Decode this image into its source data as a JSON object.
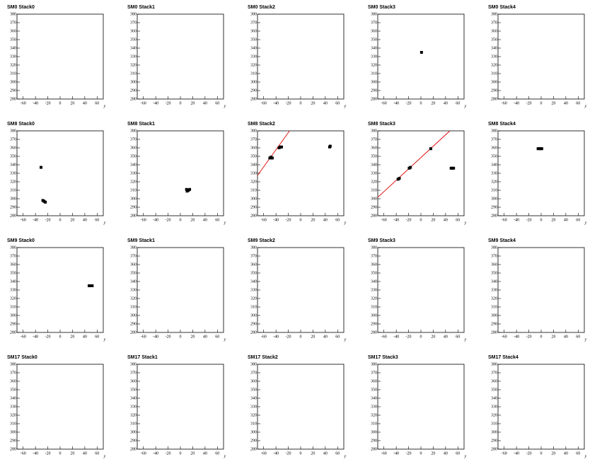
{
  "chart_data": [
    {
      "type": "scatter",
      "title": "SM0 Stack0",
      "x_label": "y",
      "xlim": [
        -70,
        70
      ],
      "ylim": [
        280,
        380
      ],
      "xticks": [
        -60,
        -40,
        -20,
        0,
        20,
        40,
        60
      ],
      "yticks": [
        280,
        290,
        300,
        310,
        320,
        330,
        340,
        350,
        360,
        370,
        380
      ],
      "series": [
        {
          "color": "#000000",
          "x": [],
          "values": []
        }
      ]
    },
    {
      "type": "scatter",
      "title": "SM0 Stack1",
      "x_label": "y",
      "xlim": [
        -70,
        70
      ],
      "ylim": [
        280,
        380
      ],
      "xticks": [
        -60,
        -40,
        -20,
        0,
        20,
        40,
        60
      ],
      "yticks": [
        280,
        290,
        300,
        310,
        320,
        330,
        340,
        350,
        360,
        370,
        380
      ],
      "series": [
        {
          "color": "#000000",
          "x": [],
          "values": []
        }
      ]
    },
    {
      "type": "scatter",
      "title": "SM0 Stack2",
      "x_label": "y",
      "xlim": [
        -70,
        70
      ],
      "ylim": [
        280,
        380
      ],
      "xticks": [
        -60,
        -40,
        -20,
        0,
        20,
        40,
        60
      ],
      "yticks": [
        280,
        290,
        300,
        310,
        320,
        330,
        340,
        350,
        360,
        370,
        380
      ],
      "series": [
        {
          "color": "#000000",
          "x": [],
          "values": []
        }
      ]
    },
    {
      "type": "scatter",
      "title": "SM0 Stack3",
      "x_label": "y",
      "xlim": [
        -70,
        70
      ],
      "ylim": [
        280,
        380
      ],
      "xticks": [
        -60,
        -40,
        -20,
        0,
        20,
        40,
        60
      ],
      "yticks": [
        280,
        290,
        300,
        310,
        320,
        330,
        340,
        350,
        360,
        370,
        380
      ],
      "series": [
        {
          "color": "#000000",
          "x": [
            1
          ],
          "values": [
            335
          ]
        }
      ]
    },
    {
      "type": "scatter",
      "title": "SM0 Stack4",
      "x_label": "y",
      "xlim": [
        -70,
        70
      ],
      "ylim": [
        280,
        380
      ],
      "xticks": [
        -60,
        -40,
        -20,
        0,
        20,
        40,
        60
      ],
      "yticks": [
        280,
        290,
        300,
        310,
        320,
        330,
        340,
        350,
        360,
        370,
        380
      ],
      "series": [
        {
          "color": "#000000",
          "x": [],
          "values": []
        }
      ]
    },
    {
      "type": "scatter",
      "title": "SM8 Stack0",
      "x_label": "y",
      "xlim": [
        -70,
        70
      ],
      "ylim": [
        280,
        380
      ],
      "xticks": [
        -60,
        -40,
        -20,
        0,
        20,
        40,
        60
      ],
      "yticks": [
        280,
        290,
        300,
        310,
        320,
        330,
        340,
        350,
        360,
        370,
        380
      ],
      "series": [
        {
          "color": "#000000",
          "x": [
            -31,
            -28,
            -26,
            -24
          ],
          "values": [
            337,
            298,
            297,
            296
          ]
        }
      ]
    },
    {
      "type": "scatter",
      "title": "SM8 Stack1",
      "x_label": "y",
      "xlim": [
        -70,
        70
      ],
      "ylim": [
        280,
        380
      ],
      "xticks": [
        -60,
        -40,
        -20,
        0,
        20,
        40,
        60
      ],
      "yticks": [
        280,
        290,
        300,
        310,
        320,
        330,
        340,
        350,
        360,
        370,
        380
      ],
      "series": [
        {
          "color": "#000000",
          "x": [
            10,
            11,
            13,
            15
          ],
          "values": [
            311,
            309,
            310,
            311
          ]
        }
      ]
    },
    {
      "type": "scatter",
      "title": "SM8 Stack2",
      "x_label": "y",
      "xlim": [
        -70,
        70
      ],
      "ylim": [
        280,
        380
      ],
      "xticks": [
        -60,
        -40,
        -20,
        0,
        20,
        40,
        60
      ],
      "yticks": [
        280,
        290,
        300,
        310,
        320,
        330,
        340,
        350,
        360,
        370,
        380
      ],
      "series": [
        {
          "color": "#000000",
          "x": [
            -50,
            -48,
            -46,
            -35,
            -33,
            -31,
            47,
            48
          ],
          "values": [
            348,
            349,
            348,
            360,
            361,
            361,
            361,
            362
          ]
        }
      ],
      "fit": {
        "color": "#dd0000",
        "x": [
          -70,
          -18
        ],
        "values": [
          327.5,
          380
        ]
      }
    },
    {
      "type": "scatter",
      "title": "SM8 Stack3",
      "x_label": "y",
      "xlim": [
        -70,
        70
      ],
      "ylim": [
        280,
        380
      ],
      "xticks": [
        -60,
        -40,
        -20,
        0,
        20,
        40,
        60
      ],
      "yticks": [
        280,
        290,
        300,
        310,
        320,
        330,
        340,
        350,
        360,
        370,
        380
      ],
      "series": [
        {
          "color": "#000000",
          "x": [
            -37,
            -35,
            -19,
            -17,
            16,
            49,
            51,
            53
          ],
          "values": [
            323,
            324,
            336,
            337,
            359,
            336,
            336,
            336
          ]
        }
      ],
      "fit": {
        "color": "#dd0000",
        "x": [
          -70,
          47
        ],
        "values": [
          301.7,
          380
        ]
      }
    },
    {
      "type": "scatter",
      "title": "SM8 Stack4",
      "x_label": "y",
      "xlim": [
        -70,
        70
      ],
      "ylim": [
        280,
        380
      ],
      "xticks": [
        -60,
        -40,
        -20,
        0,
        20,
        40,
        60
      ],
      "yticks": [
        280,
        290,
        300,
        310,
        320,
        330,
        340,
        350,
        360,
        370,
        380
      ],
      "series": [
        {
          "color": "#000000",
          "x": [
            -5,
            -3,
            -1,
            1
          ],
          "values": [
            359,
            359,
            359,
            359
          ]
        }
      ]
    },
    {
      "type": "scatter",
      "title": "SM9 Stack0",
      "x_label": "y",
      "xlim": [
        -70,
        70
      ],
      "ylim": [
        280,
        380
      ],
      "xticks": [
        -60,
        -40,
        -20,
        0,
        20,
        40,
        60
      ],
      "yticks": [
        280,
        290,
        300,
        310,
        320,
        330,
        340,
        350,
        360,
        370,
        380
      ],
      "series": [
        {
          "color": "#000000",
          "x": [
            47,
            49,
            51,
            52
          ],
          "values": [
            335,
            335,
            335,
            335
          ]
        }
      ]
    },
    {
      "type": "scatter",
      "title": "SM9 Stack1",
      "x_label": "y",
      "xlim": [
        -70,
        70
      ],
      "ylim": [
        280,
        380
      ],
      "xticks": [
        -60,
        -40,
        -20,
        0,
        20,
        40,
        60
      ],
      "yticks": [
        280,
        290,
        300,
        310,
        320,
        330,
        340,
        350,
        360,
        370,
        380
      ],
      "series": [
        {
          "color": "#000000",
          "x": [],
          "values": []
        }
      ]
    },
    {
      "type": "scatter",
      "title": "SM9 Stack2",
      "x_label": "y",
      "xlim": [
        -70,
        70
      ],
      "ylim": [
        280,
        380
      ],
      "xticks": [
        -60,
        -40,
        -20,
        0,
        20,
        40,
        60
      ],
      "yticks": [
        280,
        290,
        300,
        310,
        320,
        330,
        340,
        350,
        360,
        370,
        380
      ],
      "series": [
        {
          "color": "#000000",
          "x": [],
          "values": []
        }
      ]
    },
    {
      "type": "scatter",
      "title": "SM9 Stack3",
      "x_label": "y",
      "xlim": [
        -70,
        70
      ],
      "ylim": [
        280,
        380
      ],
      "xticks": [
        -60,
        -40,
        -20,
        0,
        20,
        40,
        60
      ],
      "yticks": [
        280,
        290,
        300,
        310,
        320,
        330,
        340,
        350,
        360,
        370,
        380
      ],
      "series": [
        {
          "color": "#000000",
          "x": [],
          "values": []
        }
      ]
    },
    {
      "type": "scatter",
      "title": "SM9 Stack4",
      "x_label": "y",
      "xlim": [
        -70,
        70
      ],
      "ylim": [
        280,
        380
      ],
      "xticks": [
        -60,
        -40,
        -20,
        0,
        20,
        40,
        60
      ],
      "yticks": [
        280,
        290,
        300,
        310,
        320,
        330,
        340,
        350,
        360,
        370,
        380
      ],
      "series": [
        {
          "color": "#000000",
          "x": [],
          "values": []
        }
      ]
    },
    {
      "type": "scatter",
      "title": "SM17 Stack0",
      "x_label": "y",
      "xlim": [
        -70,
        70
      ],
      "ylim": [
        280,
        380
      ],
      "xticks": [
        -60,
        -40,
        -20,
        0,
        20,
        40,
        60
      ],
      "yticks": [
        280,
        290,
        300,
        310,
        320,
        330,
        340,
        350,
        360,
        370,
        380
      ],
      "series": [
        {
          "color": "#000000",
          "x": [],
          "values": []
        }
      ]
    },
    {
      "type": "scatter",
      "title": "SM17 Stack1",
      "x_label": "y",
      "xlim": [
        -70,
        70
      ],
      "ylim": [
        280,
        380
      ],
      "xticks": [
        -60,
        -40,
        -20,
        0,
        20,
        40,
        60
      ],
      "yticks": [
        280,
        290,
        300,
        310,
        320,
        330,
        340,
        350,
        360,
        370,
        380
      ],
      "series": [
        {
          "color": "#000000",
          "x": [],
          "values": []
        }
      ]
    },
    {
      "type": "scatter",
      "title": "SM17 Stack2",
      "x_label": "y",
      "xlim": [
        -70,
        70
      ],
      "ylim": [
        280,
        380
      ],
      "xticks": [
        -60,
        -40,
        -20,
        0,
        20,
        40,
        60
      ],
      "yticks": [
        280,
        290,
        300,
        310,
        320,
        330,
        340,
        350,
        360,
        370,
        380
      ],
      "series": [
        {
          "color": "#000000",
          "x": [],
          "values": []
        }
      ]
    },
    {
      "type": "scatter",
      "title": "SM17 Stack3",
      "x_label": "y",
      "xlim": [
        -70,
        70
      ],
      "ylim": [
        280,
        380
      ],
      "xticks": [
        -60,
        -40,
        -20,
        0,
        20,
        40,
        60
      ],
      "yticks": [
        280,
        290,
        300,
        310,
        320,
        330,
        340,
        350,
        360,
        370,
        380
      ],
      "series": [
        {
          "color": "#000000",
          "x": [],
          "values": []
        }
      ]
    },
    {
      "type": "scatter",
      "title": "SM17 Stack4",
      "x_label": "y",
      "xlim": [
        -70,
        70
      ],
      "ylim": [
        280,
        380
      ],
      "xticks": [
        -60,
        -40,
        -20,
        0,
        20,
        40,
        60
      ],
      "yticks": [
        280,
        290,
        300,
        310,
        320,
        330,
        340,
        350,
        360,
        370,
        380
      ],
      "series": [
        {
          "color": "#000000",
          "x": [],
          "values": []
        }
      ]
    }
  ]
}
